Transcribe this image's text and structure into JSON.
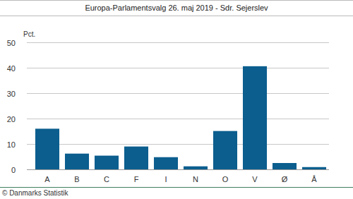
{
  "chart_data": {
    "type": "bar",
    "title": "Europa-Parlamentsvalg 26. maj 2019 - Sdr. Sejerslev",
    "ylabel": "Pct.",
    "annotations": [
      "© Danmarks Statistik"
    ],
    "categories": [
      "A",
      "B",
      "C",
      "F",
      "I",
      "N",
      "O",
      "V",
      "Ø",
      "Å"
    ],
    "values": [
      16,
      6.2,
      5.4,
      9,
      4.8,
      1.2,
      15.1,
      40.6,
      2.5,
      0.9
    ],
    "color": "#0b5e8e",
    "ylim": [
      0,
      50
    ],
    "yticks": [
      0,
      10,
      20,
      30,
      40,
      50
    ],
    "grid": true
  }
}
